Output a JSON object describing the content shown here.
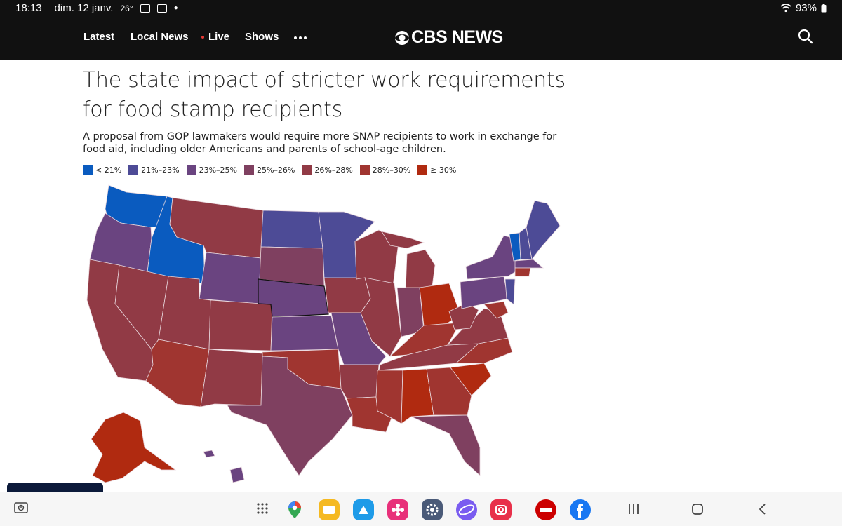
{
  "status_bar": {
    "time": "18:13",
    "date": "dim. 12 janv.",
    "temperature": "26°",
    "battery": "93%"
  },
  "nav": {
    "items": [
      "Latest",
      "Local News",
      "Live",
      "Shows"
    ],
    "logo_text": "CBS NEWS"
  },
  "article": {
    "title": "The state impact of stricter work requirements for food stamp recipients",
    "subtitle": "A proposal from GOP lawmakers would require more SNAP recipients to work in exchange for food aid, including older Americans and parents of school-age children."
  },
  "legend": [
    {
      "label": "< 21%",
      "color": "#0a5bbf"
    },
    {
      "label": "21%–23%",
      "color": "#4d4b96"
    },
    {
      "label": "23%–25%",
      "color": "#6a4480"
    },
    {
      "label": "25%–26%",
      "color": "#7f4060"
    },
    {
      "label": "26%–28%",
      "color": "#913a45"
    },
    {
      "label": "28%–30%",
      "color": "#a03530"
    },
    {
      "label": "≥ 30%",
      "color": "#b02a10"
    }
  ],
  "taskbar": {
    "apps": [
      "apps-grid",
      "maps",
      "files",
      "store",
      "settings",
      "browser",
      "camera",
      "cnn",
      "facebook"
    ]
  }
}
